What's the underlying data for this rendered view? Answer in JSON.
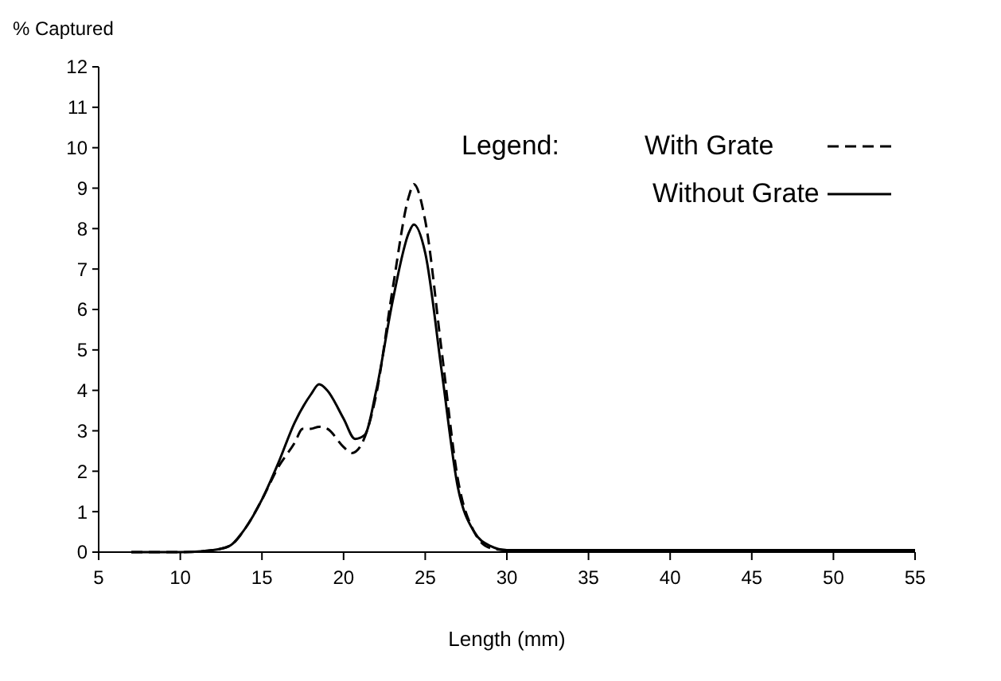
{
  "chart_data": {
    "type": "line",
    "ylabel": "% Captured",
    "xlabel": "Length (mm)",
    "legend_title": "Legend:",
    "legend": "top right",
    "grid": false,
    "marker": "none",
    "xlim": [
      5,
      55
    ],
    "xticks": [
      5,
      10,
      15,
      20,
      25,
      30,
      35,
      40,
      45,
      50,
      55
    ],
    "ylim": [
      0,
      12
    ],
    "yticks": [
      0,
      1,
      2,
      3,
      4,
      5,
      6,
      7,
      8,
      9,
      10,
      11,
      12
    ],
    "series": [
      {
        "name": "With Grate",
        "color": "#000000",
        "line_style": "dashed",
        "x": [
          7,
          10,
          12,
          13,
          14,
          15,
          16,
          17,
          17.5,
          18,
          18.5,
          19,
          20,
          20.5,
          21,
          22,
          23,
          24,
          24.3,
          25,
          26,
          27,
          28,
          29,
          30,
          55
        ],
        "values": [
          0,
          0,
          0.05,
          0.15,
          0.6,
          1.3,
          2.1,
          2.7,
          3.05,
          3.05,
          3.1,
          3.05,
          2.6,
          2.45,
          2.6,
          3.9,
          6.5,
          8.8,
          9.1,
          8.2,
          5.0,
          1.8,
          0.5,
          0.1,
          0.05,
          0.05
        ]
      },
      {
        "name": "Without Grate",
        "color": "#000000",
        "line_style": "solid",
        "x": [
          7,
          10,
          12,
          13,
          14,
          15,
          16,
          17,
          18,
          18.5,
          19,
          20,
          20.7,
          21.3,
          22,
          23,
          24,
          24.3,
          25,
          26,
          27,
          28,
          29,
          30,
          55
        ],
        "values": [
          0,
          0,
          0.05,
          0.15,
          0.6,
          1.3,
          2.2,
          3.2,
          3.9,
          4.15,
          4.0,
          3.3,
          2.8,
          2.9,
          4.0,
          6.2,
          7.9,
          8.1,
          7.4,
          4.5,
          1.6,
          0.5,
          0.15,
          0.05,
          0.05
        ]
      }
    ]
  }
}
